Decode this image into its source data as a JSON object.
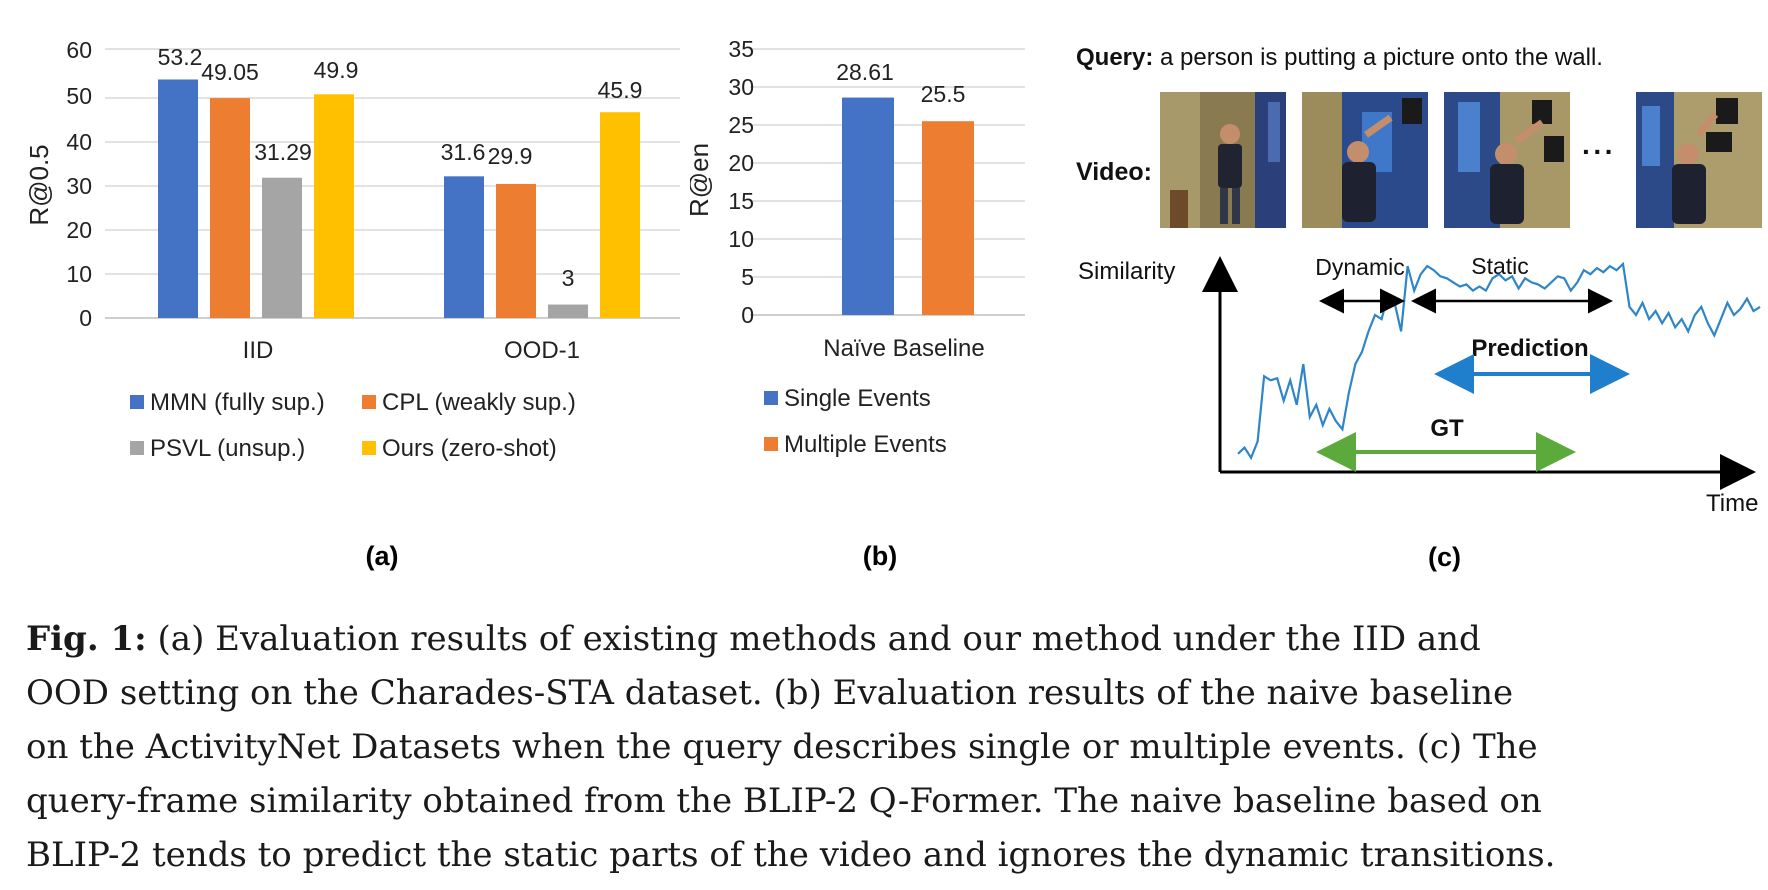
{
  "chart_data": [
    {
      "type": "bar",
      "panel": "(a)",
      "categories": [
        "IID",
        "OOD-1"
      ],
      "ylabel": "R@0.5",
      "ylim": [
        0,
        60
      ],
      "yticks": [
        "0",
        "10",
        "20",
        "30",
        "40",
        "50",
        "60"
      ],
      "grid": true,
      "legend_position": "bottom",
      "series": [
        {
          "name": "MMN (fully sup.)",
          "color": "#4472C4",
          "values": [
            53.2,
            31.6
          ],
          "labels": [
            "53.2",
            "31.6"
          ]
        },
        {
          "name": "CPL (weakly sup.)",
          "color": "#ED7D31",
          "values": [
            49.05,
            29.9
          ],
          "labels": [
            "49.05",
            "29.9"
          ]
        },
        {
          "name": "PSVL (unsup.)",
          "color": "#A5A5A5",
          "values": [
            31.29,
            3
          ],
          "labels": [
            "31.29",
            "3"
          ]
        },
        {
          "name": "Ours (zero-shot)",
          "color": "#FFC000",
          "values": [
            49.9,
            45.9
          ],
          "labels": [
            "49.9",
            "45.9"
          ]
        }
      ]
    },
    {
      "type": "bar",
      "panel": "(b)",
      "categories": [
        "Naïve Baseline"
      ],
      "ylabel": "R@en",
      "ylim": [
        0,
        35
      ],
      "yticks": [
        "0",
        "5",
        "10",
        "15",
        "20",
        "25",
        "30",
        "35"
      ],
      "grid": true,
      "legend_position": "bottom",
      "series": [
        {
          "name": "Single Events",
          "color": "#4472C4",
          "values": [
            28.61
          ],
          "labels": [
            "28.61"
          ]
        },
        {
          "name": "Multiple Events",
          "color": "#ED7D31",
          "values": [
            25.5
          ],
          "labels": [
            "25.5"
          ]
        }
      ]
    },
    {
      "type": "line",
      "panel": "(c)",
      "ylabel": "Similarity",
      "xlabel": "Time",
      "x": [
        0,
        1,
        2,
        3,
        4,
        5,
        6,
        7,
        8,
        9,
        10,
        11,
        12,
        13,
        14,
        15,
        16,
        17,
        18,
        19,
        20,
        21,
        22,
        23,
        24,
        25,
        26,
        27,
        28,
        29,
        30,
        31,
        32,
        33,
        34,
        35,
        36,
        37,
        38,
        39,
        40,
        41,
        42,
        43,
        44,
        45,
        46,
        47,
        48,
        49,
        50,
        51,
        52,
        53,
        54,
        55,
        56,
        57,
        58,
        59,
        60,
        61,
        62,
        63,
        64,
        65,
        66,
        67,
        68,
        69,
        70,
        71,
        72,
        73,
        74,
        75,
        76,
        77,
        78,
        79,
        80
      ],
      "values": [
        0.06,
        0.09,
        0.04,
        0.12,
        0.44,
        0.42,
        0.43,
        0.32,
        0.42,
        0.3,
        0.5,
        0.24,
        0.3,
        0.2,
        0.28,
        0.22,
        0.18,
        0.36,
        0.5,
        0.56,
        0.66,
        0.74,
        0.72,
        0.84,
        0.8,
        0.66,
        0.98,
        0.86,
        0.94,
        0.98,
        0.96,
        0.93,
        0.92,
        0.9,
        0.88,
        0.89,
        0.86,
        0.88,
        0.86,
        0.92,
        0.94,
        0.91,
        0.93,
        0.87,
        0.92,
        0.9,
        0.89,
        0.87,
        0.9,
        0.93,
        0.92,
        0.86,
        0.9,
        0.96,
        0.94,
        0.97,
        0.95,
        0.98,
        0.96,
        0.99,
        0.78,
        0.74,
        0.8,
        0.72,
        0.76,
        0.7,
        0.75,
        0.68,
        0.72,
        0.66,
        0.74,
        0.78,
        0.7,
        0.64,
        0.72,
        0.8,
        0.74,
        0.77,
        0.82,
        0.76,
        0.78
      ]
    }
  ],
  "panel_a": {
    "label": "(a)",
    "ylabel": "R@0.5",
    "yticks": [
      "60",
      "50",
      "40",
      "30",
      "20",
      "10",
      "0"
    ],
    "categories": [
      "IID",
      "OOD-1"
    ],
    "bar_labels": {
      "iid": [
        "53.2",
        "49.05",
        "31.29",
        "49.9"
      ],
      "ood": [
        "31.6",
        "29.9",
        "3",
        "45.9"
      ]
    },
    "legend": [
      "MMN (fully sup.)",
      "CPL (weakly sup.)",
      "PSVL (unsup.)",
      "Ours (zero-shot)"
    ]
  },
  "panel_b": {
    "label": "(b)",
    "ylabel": "R@en",
    "yticks": [
      "35",
      "30",
      "25",
      "20",
      "15",
      "10",
      "5",
      "0"
    ],
    "category": "Naïve Baseline",
    "bar_labels": [
      "28.61",
      "25.5"
    ],
    "legend": [
      "Single Events",
      "Multiple Events"
    ]
  },
  "panel_c": {
    "label": "(c)",
    "query_label": "Query:",
    "query_text": "a person is putting a picture onto the wall.",
    "video_label": "Video:",
    "ellipsis": "···",
    "similarity_label": "Similarity",
    "time_label": "Time",
    "dynamic_label": "Dynamic",
    "static_label": "Static",
    "prediction_label": "Prediction",
    "gt_label": "GT",
    "colors": {
      "curve": "#2E86C8",
      "prediction": "#1F7FCC",
      "gt": "#5DAA3C",
      "arrows": "#000000"
    }
  },
  "caption": {
    "fig_label": "Fig. 1:",
    "line1": "(a) Evaluation results of existing methods and our method under the IID and",
    "line2": "OOD setting on the Charades-STA dataset. (b) Evaluation results of the naive baseline",
    "line3": "on the ActivityNet Datasets when the query describes single or multiple events. (c) The",
    "line4": "query-frame similarity obtained from the BLIP-2 Q-Former. The naive baseline based on",
    "line5": "BLIP-2 tends to predict the static parts of the video and ignores the dynamic transitions."
  },
  "colors": {
    "mmn": "#4472C4",
    "cpl": "#ED7D31",
    "psvl": "#A5A5A5",
    "ours": "#FFC000",
    "grid": "#D9D9D9"
  }
}
